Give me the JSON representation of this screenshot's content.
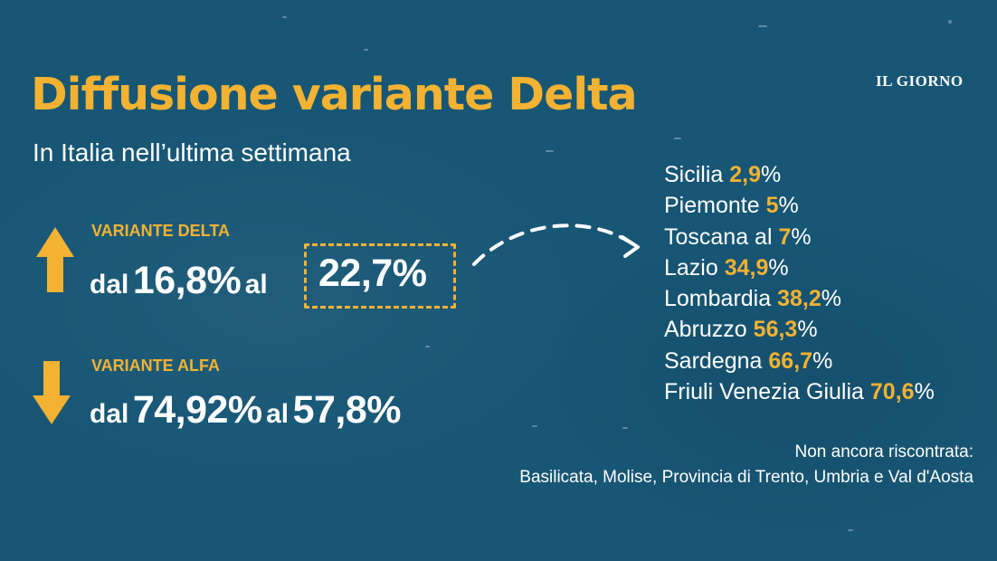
{
  "title": "Diffusione variante Delta",
  "subtitle": "In Italia nell’ultima settimana",
  "brand": "IL GIORNO",
  "colors": {
    "background": "#175675",
    "accent": "#f3b232",
    "text": "#ffffff"
  },
  "delta": {
    "icon": "arrow-up-icon",
    "label": "VARIANTE DELTA",
    "prefix": "dal",
    "from": "16,8%",
    "connector": "al",
    "to": "22,7%"
  },
  "alfa": {
    "icon": "arrow-down-icon",
    "label": "VARIANTE ALFA",
    "prefix": "dal",
    "from": "74,92%",
    "connector": "al",
    "to": "57,8%"
  },
  "regions": [
    {
      "name": "Sicilia",
      "value": "2,9",
      "unit": "%"
    },
    {
      "name": "Piemonte",
      "value": "5",
      "unit": "%"
    },
    {
      "name": "Toscana al",
      "value": "7",
      "unit": "%"
    },
    {
      "name": "Lazio",
      "value": "34,9",
      "unit": "%"
    },
    {
      "name": "Lombardia",
      "value": "38,2",
      "unit": "%"
    },
    {
      "name": "Abruzzo",
      "value": "56,3",
      "unit": "%"
    },
    {
      "name": "Sardegna",
      "value": "66,7",
      "unit": "%"
    },
    {
      "name": "Friuli Venezia Giulia",
      "value": "70,6",
      "unit": "%"
    }
  ],
  "note": {
    "line1": "Non ancora riscontrata:",
    "line2": "Basilicata, Molise, Provincia di Trento, Umbria e Val d'Aosta"
  }
}
